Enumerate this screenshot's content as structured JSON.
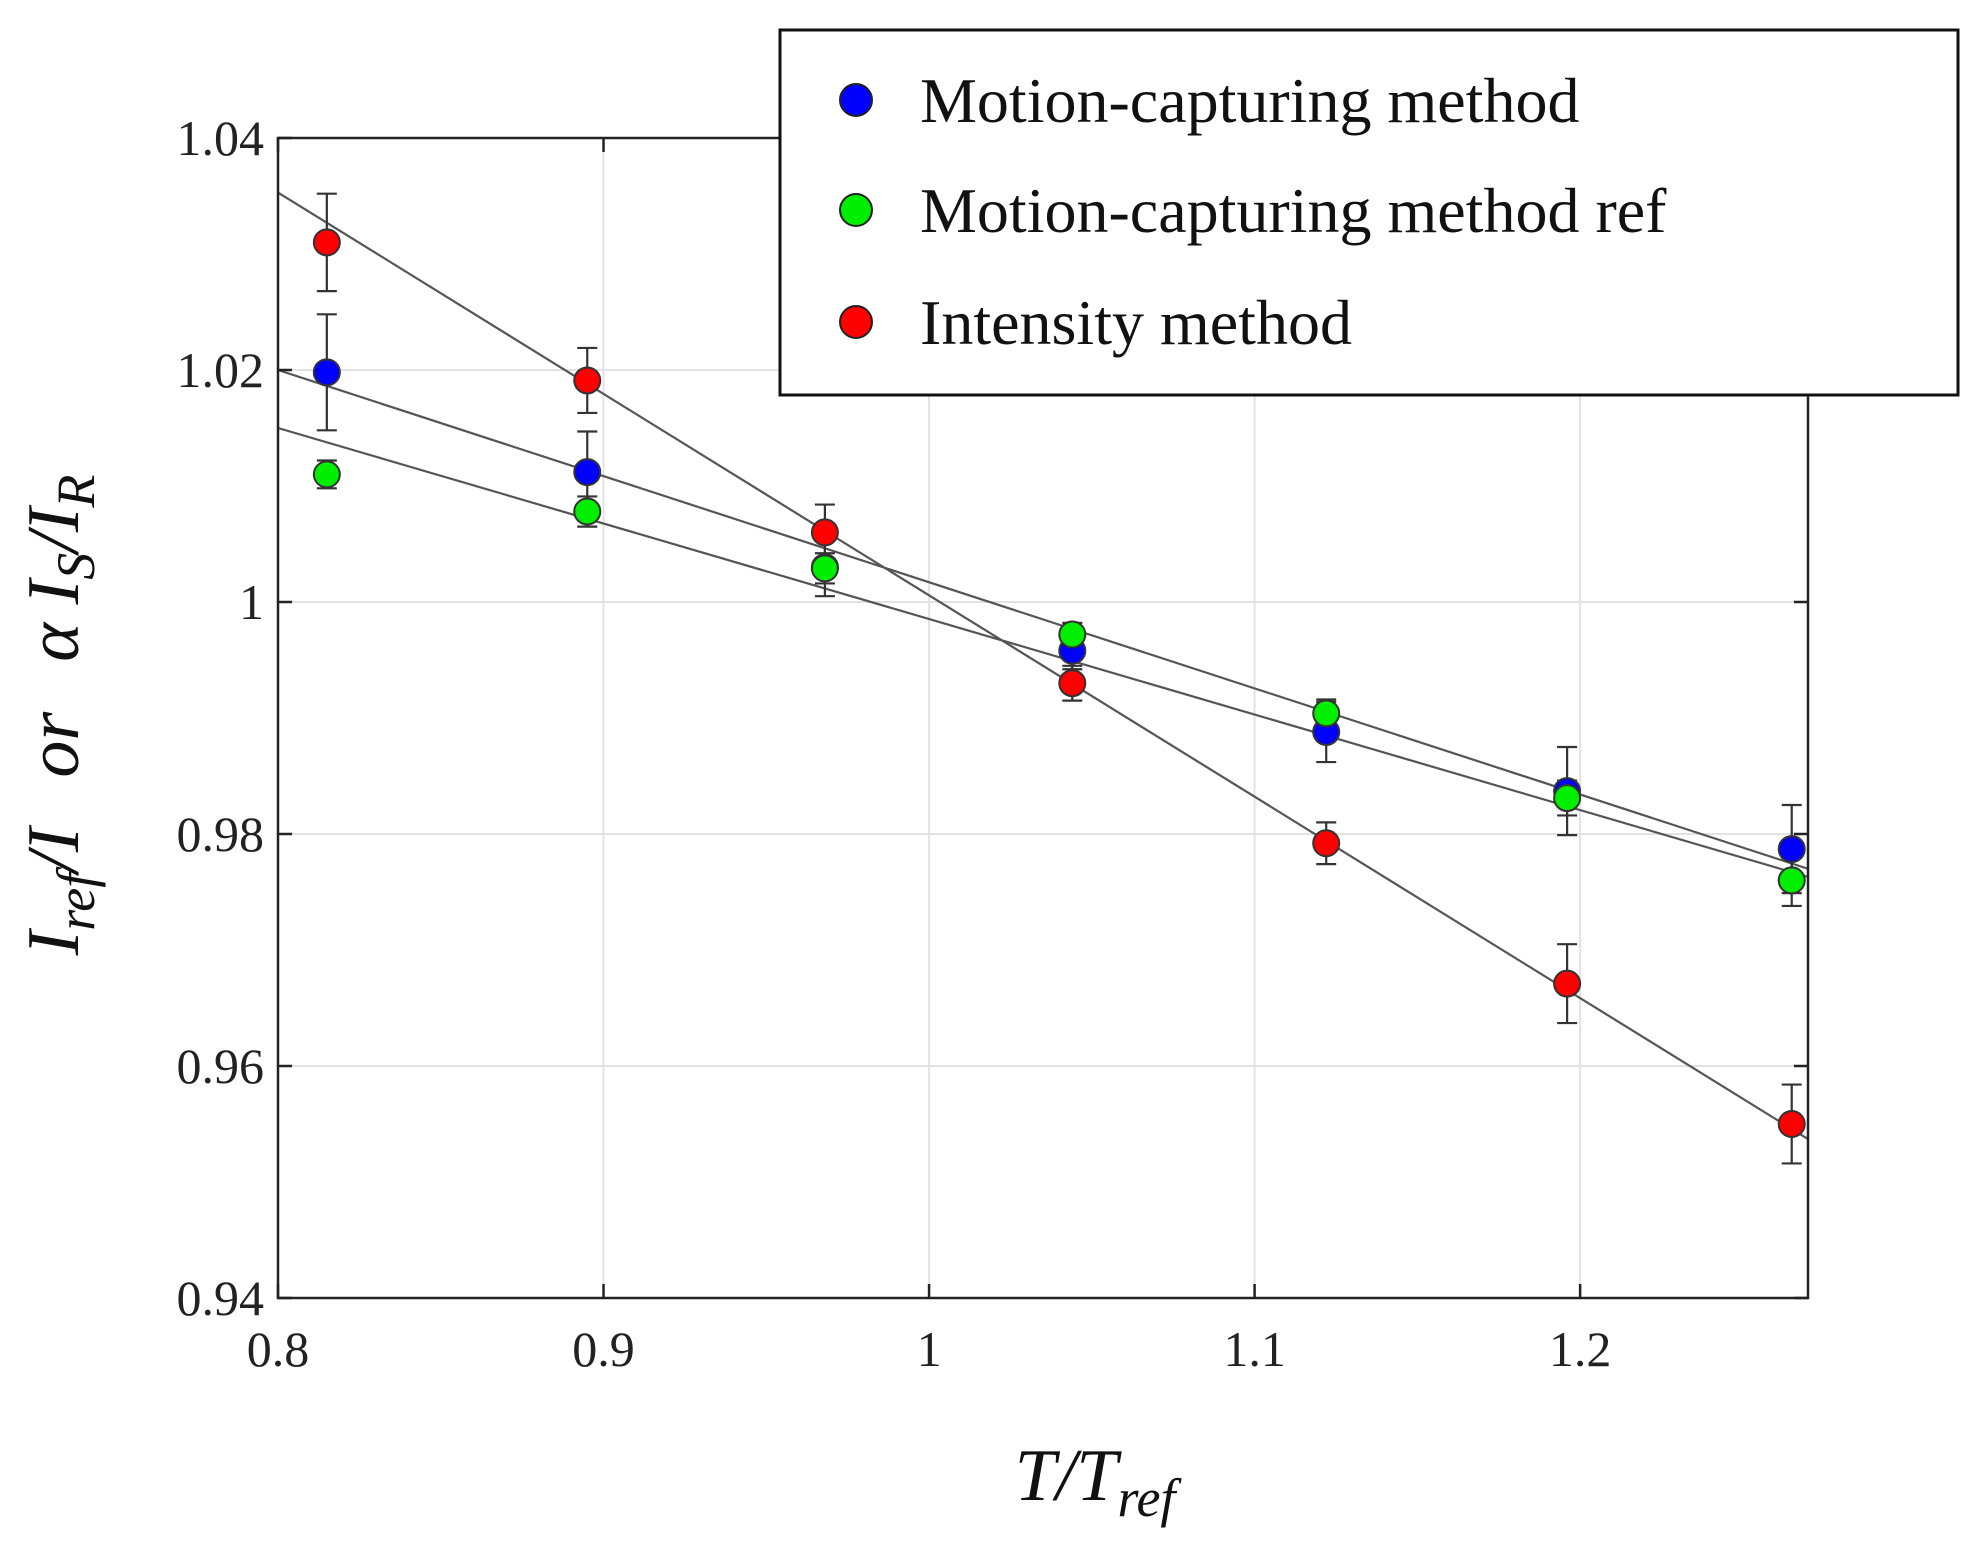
{
  "chart_data": {
    "type": "scatter",
    "title": "",
    "xlabel": {
      "main": "T/T",
      "sub": "ref"
    },
    "ylabel": {
      "part1_main": "I",
      "part1_sub": "ref",
      "part1_tail": "/I",
      "middle": "or",
      "part2_main": "α I",
      "part2_sub": "S",
      "part2_slash": "/I",
      "part2_sub2": "R"
    },
    "xlim": [
      0.8,
      1.27
    ],
    "ylim": [
      0.94,
      1.04
    ],
    "xticks": [
      0.8,
      0.9,
      1,
      1.1,
      1.2
    ],
    "xtick_labels": [
      "0.8",
      "0.9",
      "1",
      "1.1",
      "1.2"
    ],
    "yticks": [
      0.94,
      0.96,
      0.98,
      1.0,
      1.02,
      1.04
    ],
    "ytick_labels": [
      "0.94",
      "0.96",
      "0.98",
      "1",
      "1.02",
      "1.04"
    ],
    "grid": true,
    "legend_position": "top-right",
    "series": [
      {
        "name": "Motion-capturing method",
        "color": "#0000ff",
        "x": [
          0.815,
          0.895,
          0.968,
          1.044,
          1.122,
          1.196,
          1.265
        ],
        "y": [
          1.0198,
          1.0112,
          1.003,
          0.9958,
          0.9888,
          0.9837,
          0.9787
        ],
        "err": [
          0.005,
          0.0035,
          0.0025,
          0.0016,
          0.0026,
          0.0038,
          0.0038
        ],
        "fit": [
          1.02,
          0.977
        ]
      },
      {
        "name": "Motion-capturing method ref",
        "color": "#00ee00",
        "x": [
          0.815,
          0.895,
          0.968,
          1.044,
          1.122,
          1.196,
          1.265
        ],
        "y": [
          1.011,
          1.0078,
          1.0029,
          0.9972,
          0.9904,
          0.9831,
          0.976
        ],
        "err": [
          0.0012,
          0.0013,
          0.0013,
          0.001,
          0.0012,
          0.0015,
          0.0022
        ],
        "fit": [
          1.015,
          0.9763
        ]
      },
      {
        "name": "Intensity method",
        "color": "#ff0000",
        "x": [
          0.815,
          0.895,
          0.968,
          1.044,
          1.122,
          1.196,
          1.265
        ],
        "y": [
          1.031,
          1.0191,
          1.006,
          0.993,
          0.9792,
          0.9671,
          0.955
        ],
        "err": [
          0.0042,
          0.0028,
          0.0024,
          0.0015,
          0.0018,
          0.0034,
          0.0034
        ],
        "fit": [
          1.0353,
          0.9537
        ]
      }
    ]
  }
}
